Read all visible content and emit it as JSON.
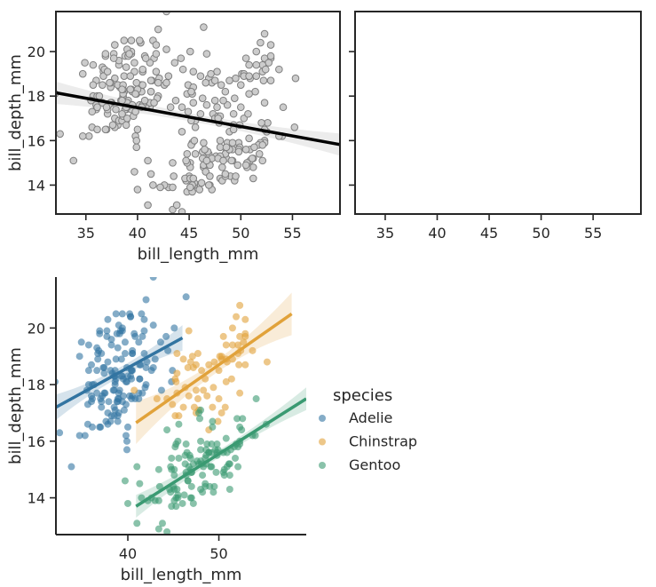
{
  "chart_data": [
    {
      "id": "top-left",
      "type": "scatter",
      "xlabel": "bill_length_mm",
      "ylabel": "bill_depth_mm",
      "xlim": [
        32.1,
        59.6
      ],
      "ylim": [
        12.7,
        21.8
      ],
      "xticks": [
        "35",
        "40",
        "45",
        "50",
        "55"
      ],
      "yticks": [
        "14",
        "16",
        "18",
        "20"
      ],
      "marker_fill": "#cccccc",
      "marker_edge": "#7f7f7f",
      "regression": {
        "x0": 32.1,
        "y0": 18.15,
        "x1": 59.6,
        "y1": 15.82,
        "color": "#000000",
        "band_color": "#d9d9d9"
      }
    },
    {
      "id": "top-right",
      "type": "scatter",
      "xlabel": "",
      "ylabel": "",
      "xlim": [
        32.1,
        59.6
      ],
      "ylim": [
        12.7,
        21.8
      ],
      "xticks": [
        "35",
        "40",
        "45",
        "50",
        "55"
      ],
      "yticks": [
        "",
        "",
        "",
        ""
      ],
      "empty": true
    },
    {
      "id": "bottom",
      "type": "scatter",
      "xlabel": "bill_length_mm",
      "ylabel": "bill_depth_mm",
      "xlim": [
        32.1,
        59.6
      ],
      "ylim": [
        12.7,
        21.8
      ],
      "xticks": [
        "40",
        "50"
      ],
      "yticks": [
        "14",
        "16",
        "18",
        "20"
      ],
      "legend": {
        "title": "species",
        "entries": [
          "Adelie",
          "Chinstrap",
          "Gentoo"
        ],
        "position": "center-right"
      },
      "series": [
        {
          "name": "Adelie",
          "color": "#3274a1",
          "fit": {
            "x0": 32.1,
            "y0": 17.2,
            "x1": 46.0,
            "y1": 19.65
          }
        },
        {
          "name": "Chinstrap",
          "color": "#e1a23a",
          "fit": {
            "x0": 40.9,
            "y0": 16.65,
            "x1": 58.0,
            "y1": 20.5
          }
        },
        {
          "name": "Gentoo",
          "color": "#3a9a72",
          "fit": {
            "x0": 40.9,
            "y0": 13.7,
            "x1": 59.6,
            "y1": 17.5
          }
        }
      ]
    }
  ]
}
